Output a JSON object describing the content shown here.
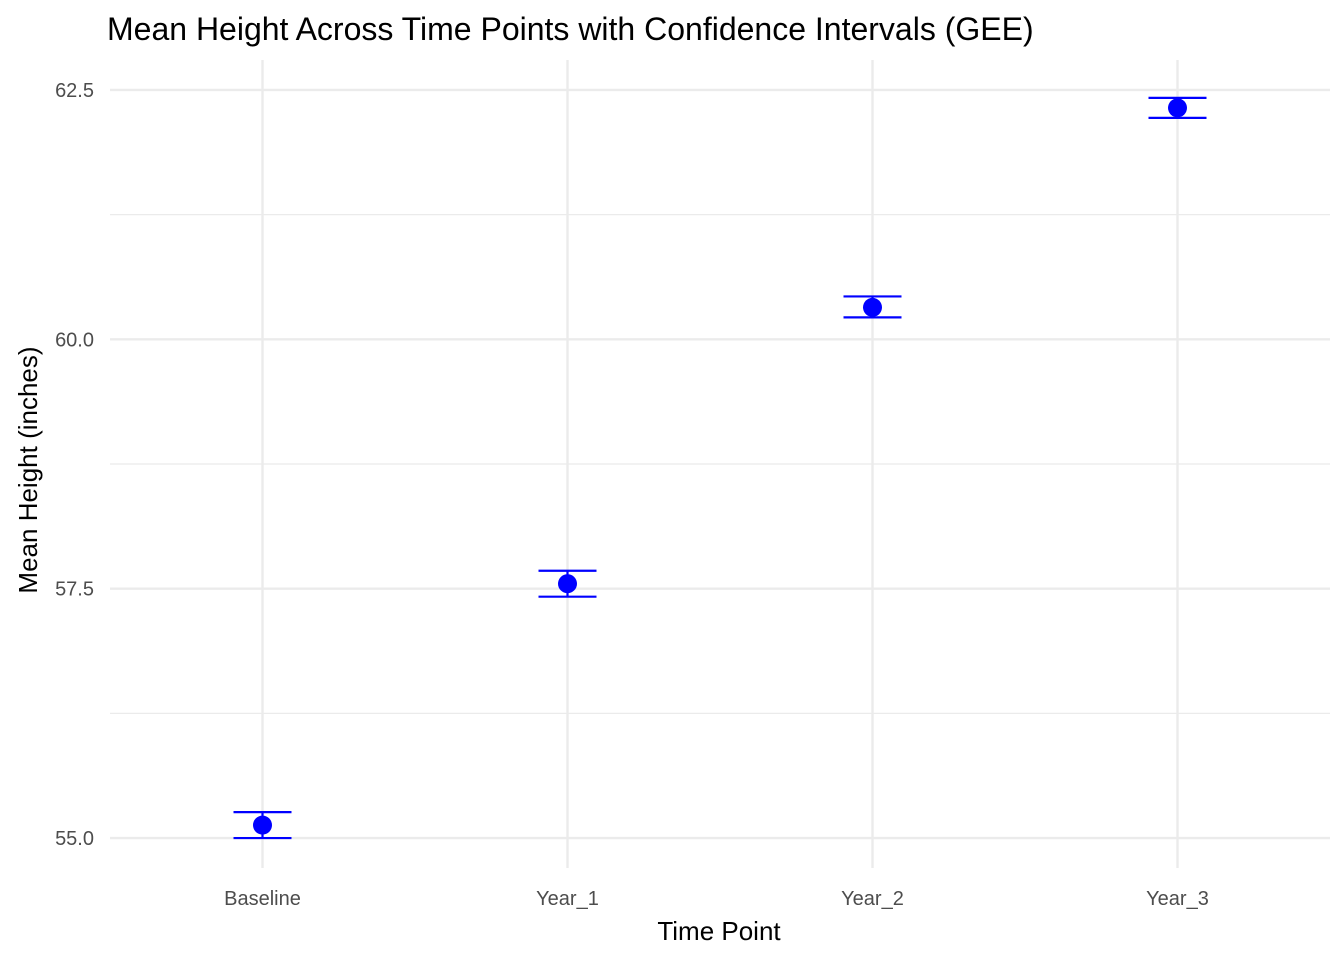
{
  "chart_data": {
    "type": "scatter",
    "title": "Mean Height Across Time Points with Confidence Intervals (GEE)",
    "xlabel": "Time Point",
    "ylabel": "Mean Height (inches)",
    "categories": [
      "Baseline",
      "Year_1",
      "Year_2",
      "Year_3"
    ],
    "series": [
      {
        "values": [
          55.13,
          57.55,
          60.32,
          62.32
        ],
        "ci_lower": [
          55.0,
          57.42,
          60.22,
          62.22
        ],
        "ci_upper": [
          55.26,
          57.68,
          60.43,
          62.42
        ]
      }
    ],
    "ylim": [
      54.7,
      62.8
    ],
    "yticks": [
      55.0,
      57.5,
      60.0,
      62.5
    ],
    "ytick_labels": [
      "55.0",
      "57.5",
      "60.0",
      "62.5"
    ],
    "grid": true,
    "legend": "none",
    "colors": {
      "point": "#0000FF",
      "grid": "#EBEBEB"
    }
  }
}
